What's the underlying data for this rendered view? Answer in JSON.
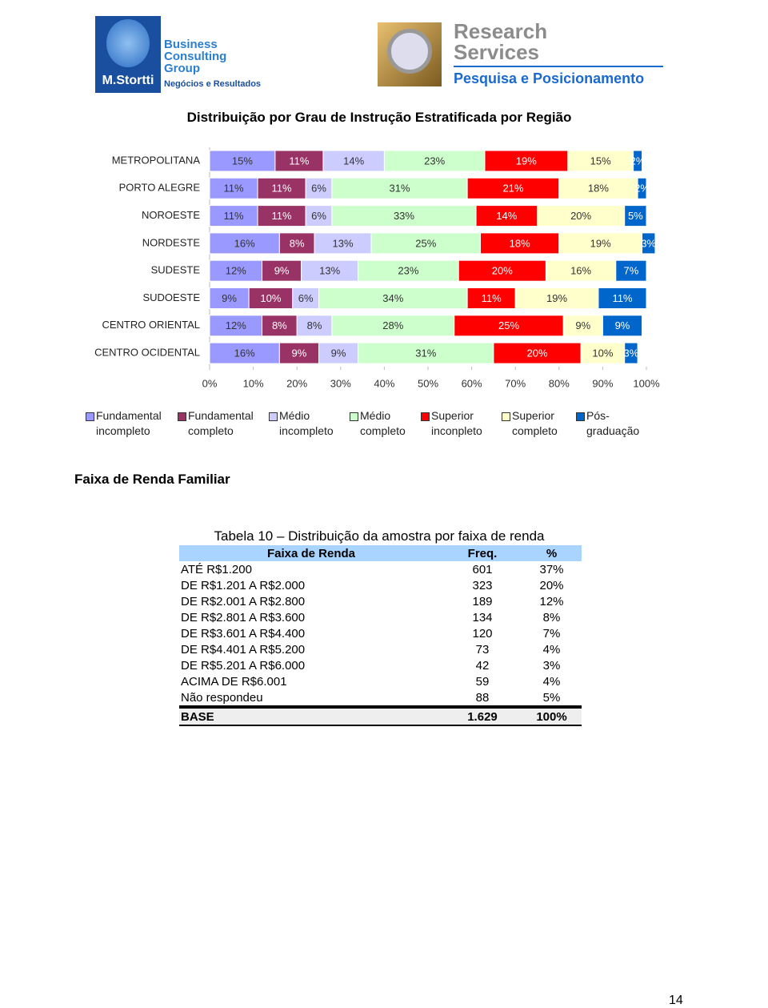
{
  "header": {
    "left_logo": {
      "line1": "Business",
      "line2": "Consulting",
      "line3": "Group",
      "brand": "M.Stortti",
      "tagline": "Negócios e Resultados"
    },
    "right_logo": {
      "line1": "Research",
      "line2": "Services",
      "tagline": "Pesquisa e Posicionamento"
    }
  },
  "chart_data": {
    "type": "bar",
    "orientation": "horizontal",
    "stacked": true,
    "title": "Distribuição por Grau de Instrução Estratificada por Região",
    "categories": [
      "METROPOLITANA",
      "PORTO ALEGRE",
      "NOROESTE",
      "NORDESTE",
      "SUDESTE",
      "SUDOESTE",
      "CENTRO ORIENTAL",
      "CENTRO OCIDENTAL"
    ],
    "series": [
      {
        "name": "Fundamental incompleto",
        "color": "#9999ff",
        "values": [
          15,
          11,
          11,
          16,
          12,
          9,
          12,
          16
        ],
        "value_labels": [
          "15%",
          "11%",
          "11%",
          "16%",
          "12%",
          "9%",
          "12%",
          "16%"
        ]
      },
      {
        "name": "Fundamental completo",
        "color": "#993366",
        "values": [
          11,
          11,
          11,
          8,
          9,
          10,
          8,
          9
        ],
        "value_labels": [
          "11%",
          "11%",
          "11%",
          "8%",
          "9%",
          "10%",
          "8%",
          "9%"
        ]
      },
      {
        "name": "Médio incompleto",
        "color": "#ccccff",
        "values": [
          14,
          6,
          6,
          13,
          13,
          6,
          8,
          9
        ],
        "value_labels": [
          "14%",
          "6%",
          "6%",
          "13%",
          "13%",
          "6%",
          "8%",
          "9%"
        ]
      },
      {
        "name": "Médio completo",
        "color": "#ccffcc",
        "values": [
          23,
          31,
          33,
          25,
          23,
          34,
          28,
          31
        ],
        "value_labels": [
          "23%",
          "31%",
          "33%",
          "25%",
          "23%",
          "34%",
          "28%",
          "31%"
        ]
      },
      {
        "name": "Superior inconpleto",
        "color": "#ff0000",
        "values": [
          19,
          21,
          14,
          18,
          20,
          11,
          25,
          20
        ],
        "value_labels": [
          "19%",
          "21%",
          "14%",
          "18%",
          "20%",
          "11%",
          "25%",
          "20%"
        ]
      },
      {
        "name": "Superior completo",
        "color": "#ffffcc",
        "values": [
          15,
          18,
          20,
          19,
          16,
          19,
          9,
          10
        ],
        "value_labels": [
          "15%",
          "18%",
          "20%",
          "19%",
          "16%",
          "19%",
          "9%",
          "10%"
        ]
      },
      {
        "name": "Pós-graduação",
        "color": "#0066cc",
        "values": [
          2,
          2,
          5,
          3,
          7,
          11,
          9,
          3
        ],
        "value_labels": [
          "2%",
          "2%",
          "5%",
          "3%",
          "7%",
          "11%",
          "9%",
          "3%"
        ]
      }
    ],
    "xlim": [
      0,
      100
    ],
    "xticks": [
      {
        "value": 0,
        "label": "0%"
      },
      {
        "value": 10,
        "label": "10%"
      },
      {
        "value": 20,
        "label": "20%"
      },
      {
        "value": 30,
        "label": "30%"
      },
      {
        "value": 40,
        "label": "40%"
      },
      {
        "value": 50,
        "label": "50%"
      },
      {
        "value": 60,
        "label": "60%"
      },
      {
        "value": 70,
        "label": "70%"
      },
      {
        "value": 80,
        "label": "80%"
      },
      {
        "value": 90,
        "label": "90%"
      },
      {
        "value": 100,
        "label": "100%"
      }
    ],
    "legend": "bottom"
  },
  "section_title": "Faixa de Renda Familiar",
  "table": {
    "caption": "Tabela 10 – Distribuição da amostra por faixa de renda",
    "headers": [
      "Faixa de Renda",
      "Freq.",
      "%"
    ],
    "rows": [
      [
        "ATÉ R$1.200",
        "601",
        "37%"
      ],
      [
        "DE R$1.201 A R$2.000",
        "323",
        "20%"
      ],
      [
        "DE R$2.001 A R$2.800",
        "189",
        "12%"
      ],
      [
        "DE R$2.801 A R$3.600",
        "134",
        "8%"
      ],
      [
        "DE R$3.601 A R$4.400",
        "120",
        "7%"
      ],
      [
        "DE R$4.401 A R$5.200",
        "73",
        "4%"
      ],
      [
        "DE R$5.201 A R$6.000",
        "42",
        "3%"
      ],
      [
        "ACIMA DE R$6.001",
        "59",
        "4%"
      ],
      [
        "Não respondeu",
        "88",
        "5%"
      ]
    ],
    "total": [
      "BASE",
      "1.629",
      "100%"
    ]
  },
  "page_number": "14"
}
